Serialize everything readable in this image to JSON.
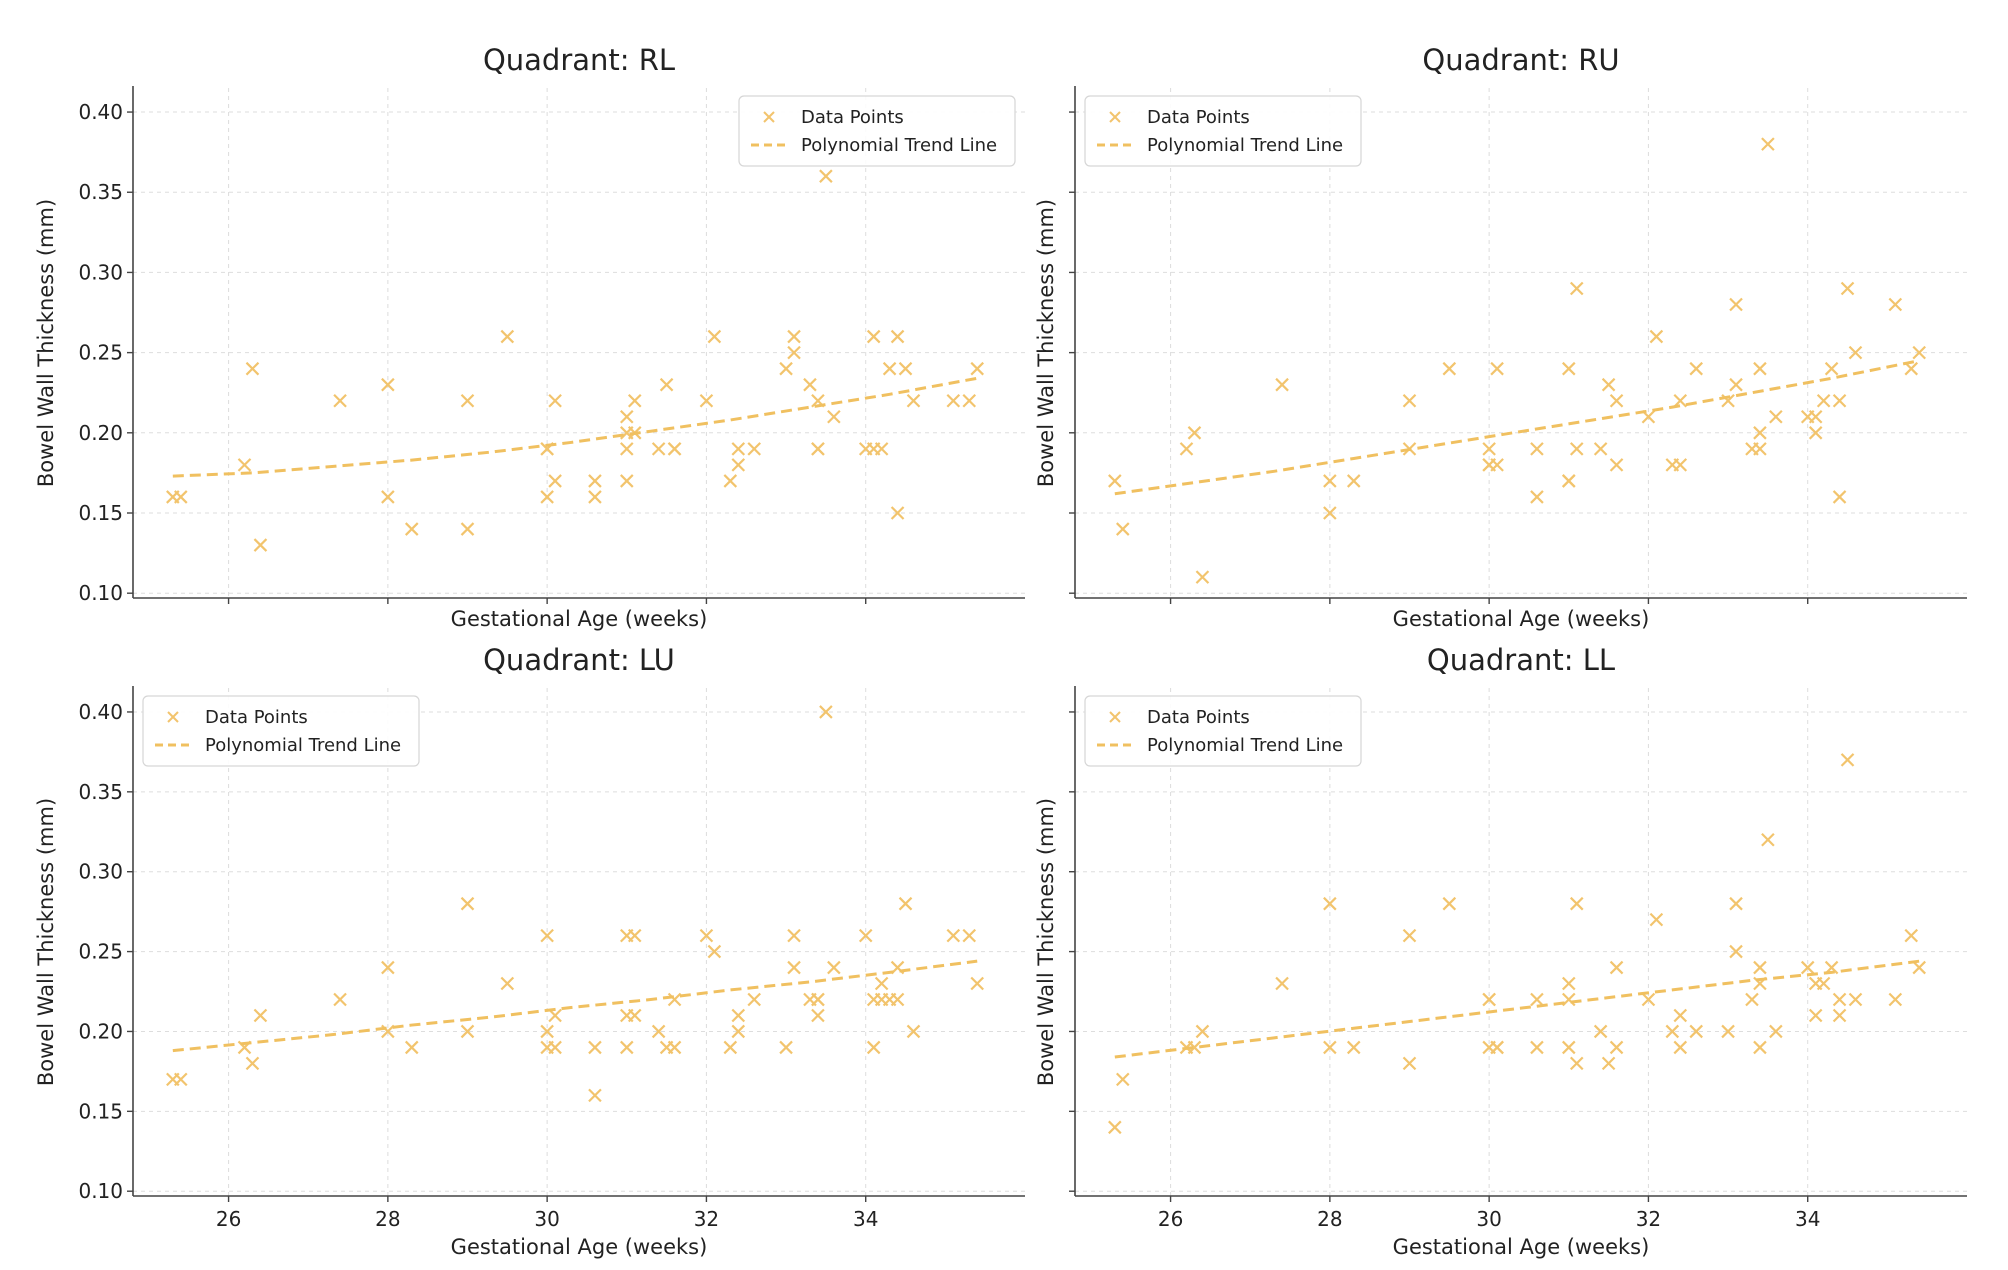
{
  "chart_data": [
    {
      "type": "scatter",
      "title": "Quadrant: RL",
      "xlabel": "Gestational Age (weeks)",
      "ylabel": "Bowel Wall Thickness (mm)",
      "xlim": [
        24.8,
        36.0
      ],
      "ylim": [
        0.097,
        0.415
      ],
      "xticks": [
        26,
        28,
        30,
        32,
        34
      ],
      "xtick_labels_visible": false,
      "yticks": [
        0.1,
        0.15,
        0.2,
        0.25,
        0.3,
        0.35,
        0.4
      ],
      "ytick_labels": [
        "0.10",
        "0.15",
        "0.20",
        "0.25",
        "0.30",
        "0.35",
        "0.40"
      ],
      "ytick_labels_visible": true,
      "grid": true,
      "legend_position": "top-right",
      "colors": {
        "points": "#f2c46d",
        "trend": "#f0c060",
        "grid": "#dddddd"
      },
      "series": [
        {
          "name": "Data Points",
          "kind": "scatter",
          "x": [
            25.3,
            25.4,
            26.2,
            26.3,
            26.4,
            27.4,
            28.0,
            28.0,
            28.3,
            29.0,
            29.0,
            29.5,
            30.0,
            30.0,
            30.0,
            30.1,
            30.1,
            30.6,
            30.6,
            31.0,
            31.0,
            31.0,
            31.0,
            31.1,
            31.1,
            31.4,
            31.5,
            31.6,
            31.6,
            32.0,
            32.1,
            32.3,
            32.4,
            32.4,
            32.6,
            33.0,
            33.1,
            33.1,
            33.3,
            33.4,
            33.4,
            33.4,
            33.5,
            33.6,
            34.0,
            34.1,
            34.1,
            34.2,
            34.3,
            34.4,
            34.4,
            34.5,
            34.6,
            35.1,
            35.3,
            35.4
          ],
          "y": [
            0.16,
            0.16,
            0.18,
            0.24,
            0.13,
            0.22,
            0.23,
            0.16,
            0.14,
            0.22,
            0.14,
            0.26,
            0.19,
            0.19,
            0.16,
            0.17,
            0.22,
            0.17,
            0.16,
            0.17,
            0.19,
            0.21,
            0.2,
            0.22,
            0.2,
            0.19,
            0.23,
            0.19,
            0.19,
            0.22,
            0.26,
            0.17,
            0.18,
            0.19,
            0.19,
            0.24,
            0.26,
            0.25,
            0.23,
            0.19,
            0.19,
            0.22,
            0.36,
            0.21,
            0.19,
            0.26,
            0.19,
            0.19,
            0.24,
            0.26,
            0.15,
            0.24,
            0.22,
            0.22,
            0.22,
            0.24
          ]
        },
        {
          "name": "Polynomial Trend Line",
          "kind": "line",
          "x": [
            25.3,
            26.3,
            27.3,
            28.3,
            29.3,
            30.3,
            31.3,
            32.3,
            33.3,
            34.3,
            35.4
          ],
          "y": [
            0.173,
            0.175,
            0.179,
            0.183,
            0.188,
            0.194,
            0.201,
            0.208,
            0.216,
            0.224,
            0.234
          ]
        }
      ]
    },
    {
      "type": "scatter",
      "title": "Quadrant: RU",
      "xlabel": "Gestational Age (weeks)",
      "ylabel": "Bowel Wall Thickness (mm)",
      "xlim": [
        24.8,
        36.0
      ],
      "ylim": [
        0.097,
        0.415
      ],
      "xticks": [
        26,
        28,
        30,
        32,
        34
      ],
      "xtick_labels_visible": false,
      "yticks": [
        0.1,
        0.15,
        0.2,
        0.25,
        0.3,
        0.35,
        0.4
      ],
      "ytick_labels_visible": false,
      "grid": true,
      "legend_position": "top-left",
      "colors": {
        "points": "#f2c46d",
        "trend": "#f0c060",
        "grid": "#dddddd"
      },
      "series": [
        {
          "name": "Data Points",
          "kind": "scatter",
          "x": [
            25.3,
            25.4,
            26.2,
            26.3,
            26.4,
            27.4,
            28.0,
            28.0,
            28.3,
            29.0,
            29.0,
            29.5,
            30.0,
            30.0,
            30.0,
            30.1,
            30.1,
            30.6,
            30.6,
            31.0,
            31.0,
            31.0,
            31.1,
            31.1,
            31.4,
            31.5,
            31.6,
            31.6,
            32.0,
            32.1,
            32.3,
            32.4,
            32.4,
            32.6,
            33.0,
            33.1,
            33.1,
            33.3,
            33.4,
            33.4,
            33.4,
            33.5,
            33.6,
            34.0,
            34.1,
            34.1,
            34.2,
            34.3,
            34.4,
            34.4,
            34.5,
            34.6,
            35.1,
            35.3,
            35.4
          ],
          "y": [
            0.17,
            0.14,
            0.19,
            0.2,
            0.11,
            0.23,
            0.17,
            0.15,
            0.17,
            0.22,
            0.19,
            0.24,
            0.18,
            0.19,
            0.18,
            0.18,
            0.24,
            0.19,
            0.16,
            0.24,
            0.17,
            0.17,
            0.29,
            0.19,
            0.19,
            0.23,
            0.22,
            0.18,
            0.21,
            0.26,
            0.18,
            0.18,
            0.22,
            0.24,
            0.22,
            0.23,
            0.28,
            0.19,
            0.24,
            0.2,
            0.19,
            0.38,
            0.21,
            0.21,
            0.2,
            0.21,
            0.22,
            0.24,
            0.22,
            0.16,
            0.29,
            0.25,
            0.28,
            0.24,
            0.25
          ]
        },
        {
          "name": "Polynomial Trend Line",
          "kind": "line",
          "x": [
            25.3,
            26.3,
            27.3,
            28.3,
            29.3,
            30.3,
            31.3,
            32.3,
            33.3,
            34.3,
            35.4
          ],
          "y": [
            0.162,
            0.169,
            0.176,
            0.184,
            0.192,
            0.2,
            0.208,
            0.216,
            0.225,
            0.234,
            0.245
          ]
        }
      ]
    },
    {
      "type": "scatter",
      "title": "Quadrant: LU",
      "xlabel": "Gestational Age (weeks)",
      "ylabel": "Bowel Wall Thickness (mm)",
      "xlim": [
        24.8,
        36.0
      ],
      "ylim": [
        0.097,
        0.415
      ],
      "xticks": [
        26,
        28,
        30,
        32,
        34
      ],
      "xtick_labels": [
        "26",
        "28",
        "30",
        "32",
        "34"
      ],
      "xtick_labels_visible": true,
      "yticks": [
        0.1,
        0.15,
        0.2,
        0.25,
        0.3,
        0.35,
        0.4
      ],
      "ytick_labels": [
        "0.10",
        "0.15",
        "0.20",
        "0.25",
        "0.30",
        "0.35",
        "0.40"
      ],
      "ytick_labels_visible": true,
      "grid": true,
      "legend_position": "top-left",
      "colors": {
        "points": "#f2c46d",
        "trend": "#f0c060",
        "grid": "#dddddd"
      },
      "series": [
        {
          "name": "Data Points",
          "kind": "scatter",
          "x": [
            25.3,
            25.4,
            26.2,
            26.3,
            26.4,
            27.4,
            28.0,
            28.0,
            28.3,
            29.0,
            29.0,
            29.5,
            30.0,
            30.0,
            30.0,
            30.1,
            30.1,
            30.6,
            30.6,
            31.0,
            31.0,
            31.0,
            31.1,
            31.1,
            31.4,
            31.5,
            31.6,
            31.6,
            32.0,
            32.1,
            32.3,
            32.4,
            32.4,
            32.6,
            33.0,
            33.1,
            33.1,
            33.3,
            33.4,
            33.4,
            33.4,
            33.5,
            33.6,
            34.0,
            34.1,
            34.1,
            34.2,
            34.2,
            34.3,
            34.4,
            34.4,
            34.5,
            34.6,
            35.1,
            35.3,
            35.4
          ],
          "y": [
            0.17,
            0.17,
            0.19,
            0.18,
            0.21,
            0.22,
            0.24,
            0.2,
            0.19,
            0.28,
            0.2,
            0.23,
            0.26,
            0.2,
            0.19,
            0.19,
            0.21,
            0.19,
            0.16,
            0.26,
            0.19,
            0.21,
            0.26,
            0.21,
            0.2,
            0.19,
            0.22,
            0.19,
            0.26,
            0.25,
            0.19,
            0.21,
            0.2,
            0.22,
            0.19,
            0.26,
            0.24,
            0.22,
            0.22,
            0.22,
            0.21,
            0.4,
            0.24,
            0.26,
            0.22,
            0.19,
            0.23,
            0.22,
            0.22,
            0.22,
            0.24,
            0.28,
            0.2,
            0.26,
            0.26,
            0.23
          ]
        },
        {
          "name": "Polynomial Trend Line",
          "kind": "line",
          "x": [
            25.3,
            26.3,
            27.3,
            28.3,
            29.3,
            30.3,
            31.3,
            32.3,
            33.3,
            34.3,
            35.4
          ],
          "y": [
            0.188,
            0.193,
            0.198,
            0.204,
            0.209,
            0.215,
            0.22,
            0.226,
            0.231,
            0.237,
            0.244
          ]
        }
      ]
    },
    {
      "type": "scatter",
      "title": "Quadrant: LL",
      "xlabel": "Gestational Age (weeks)",
      "ylabel": "Bowel Wall Thickness (mm)",
      "xlim": [
        24.8,
        36.0
      ],
      "ylim": [
        0.097,
        0.415
      ],
      "xticks": [
        26,
        28,
        30,
        32,
        34
      ],
      "xtick_labels": [
        "26",
        "28",
        "30",
        "32",
        "34"
      ],
      "xtick_labels_visible": true,
      "yticks": [
        0.1,
        0.15,
        0.2,
        0.25,
        0.3,
        0.35,
        0.4
      ],
      "ytick_labels_visible": false,
      "grid": true,
      "legend_position": "top-left",
      "colors": {
        "points": "#f2c46d",
        "trend": "#f0c060",
        "grid": "#dddddd"
      },
      "series": [
        {
          "name": "Data Points",
          "kind": "scatter",
          "x": [
            25.3,
            25.4,
            26.2,
            26.3,
            26.4,
            27.4,
            28.0,
            28.0,
            28.3,
            29.0,
            29.0,
            29.5,
            30.0,
            30.0,
            30.0,
            30.1,
            30.1,
            30.6,
            30.6,
            31.0,
            31.0,
            31.0,
            31.1,
            31.1,
            31.4,
            31.5,
            31.6,
            31.6,
            32.0,
            32.1,
            32.3,
            32.4,
            32.4,
            32.6,
            33.0,
            33.1,
            33.1,
            33.3,
            33.4,
            33.4,
            33.4,
            33.5,
            33.6,
            34.0,
            34.1,
            34.1,
            34.2,
            34.3,
            34.4,
            34.4,
            34.5,
            34.6,
            35.1,
            35.3,
            35.4
          ],
          "y": [
            0.14,
            0.17,
            0.19,
            0.19,
            0.2,
            0.23,
            0.28,
            0.19,
            0.19,
            0.26,
            0.18,
            0.28,
            0.22,
            0.19,
            0.22,
            0.19,
            0.19,
            0.22,
            0.19,
            0.23,
            0.22,
            0.19,
            0.28,
            0.18,
            0.2,
            0.18,
            0.24,
            0.19,
            0.22,
            0.27,
            0.2,
            0.21,
            0.19,
            0.2,
            0.2,
            0.28,
            0.25,
            0.22,
            0.24,
            0.23,
            0.19,
            0.32,
            0.2,
            0.24,
            0.21,
            0.23,
            0.23,
            0.24,
            0.22,
            0.21,
            0.37,
            0.22,
            0.22,
            0.26,
            0.24
          ]
        },
        {
          "name": "Polynomial Trend Line",
          "kind": "line",
          "x": [
            25.3,
            26.3,
            27.3,
            28.3,
            29.3,
            30.3,
            31.3,
            32.3,
            33.3,
            34.3,
            35.4
          ],
          "y": [
            0.184,
            0.19,
            0.196,
            0.202,
            0.208,
            0.214,
            0.22,
            0.226,
            0.232,
            0.237,
            0.244
          ]
        }
      ]
    }
  ]
}
